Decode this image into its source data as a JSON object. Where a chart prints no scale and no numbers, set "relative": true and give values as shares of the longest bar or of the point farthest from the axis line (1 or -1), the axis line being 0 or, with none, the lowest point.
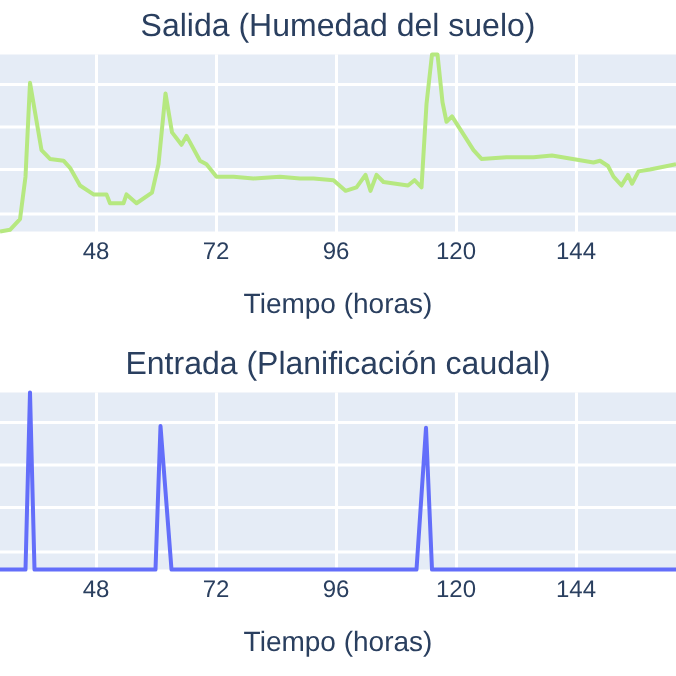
{
  "chart_data": [
    {
      "type": "line",
      "title": "Salida (Humedad del suelo)",
      "xlabel": "Tiempo (horas)",
      "relative": true,
      "grid": true,
      "tick_labels": "x",
      "xlim": [
        28.8,
        164
      ],
      "xticks": [
        48,
        72,
        96,
        120,
        144
      ],
      "series": [
        {
          "color": "#b6e880",
          "x": [
            28.8,
            30.8,
            32.8,
            33.9,
            34.8,
            37.1,
            38.8,
            41.5,
            42.8,
            44.8,
            47.5,
            50.1,
            50.8,
            53.5,
            54.1,
            56.1,
            59.2,
            60.5,
            61.9,
            63.2,
            65.1,
            66.1,
            68.8,
            70.1,
            72.1,
            75.5,
            79.5,
            84.8,
            88.8,
            91.5,
            95.5,
            97.9,
            100.1,
            101.9,
            102.9,
            104.1,
            105.5,
            110.4,
            111.7,
            113.1,
            114.1,
            115.2,
            116.3,
            117.3,
            118.1,
            119.2,
            123.5,
            125.1,
            130.1,
            135.5,
            139.2,
            147.5,
            148.8,
            150.4,
            151.5,
            153.1,
            154.4,
            155.2,
            156.5,
            158.8,
            164
          ],
          "values": [
            0,
            0.01,
            0.07,
            0.31,
            0.84,
            0.46,
            0.41,
            0.4,
            0.36,
            0.26,
            0.21,
            0.21,
            0.16,
            0.16,
            0.21,
            0.16,
            0.22,
            0.38,
            0.78,
            0.56,
            0.49,
            0.54,
            0.4,
            0.38,
            0.31,
            0.31,
            0.3,
            0.31,
            0.3,
            0.3,
            0.29,
            0.23,
            0.25,
            0.32,
            0.23,
            0.32,
            0.28,
            0.26,
            0.29,
            0.25,
            0.72,
            1,
            1,
            0.73,
            0.62,
            0.65,
            0.46,
            0.41,
            0.42,
            0.42,
            0.43,
            0.39,
            0.4,
            0.37,
            0.31,
            0.26,
            0.32,
            0.27,
            0.34,
            0.35,
            0.38
          ]
        }
      ]
    },
    {
      "type": "line",
      "title": "Entrada (Planificación caudal)",
      "xlabel": "Tiempo (horas)",
      "relative": true,
      "grid": true,
      "tick_labels": "x",
      "xlim": [
        28.8,
        164
      ],
      "xticks": [
        48,
        72,
        96,
        120,
        144
      ],
      "series": [
        {
          "color": "#636efa",
          "x": [
            28.8,
            33.9,
            34.8,
            35.7,
            59.9,
            60.9,
            63.1,
            112.1,
            114,
            115.2,
            164
          ],
          "values": [
            0,
            0,
            1,
            0,
            0,
            0.81,
            0,
            0,
            0.8,
            0,
            0
          ]
        }
      ]
    }
  ]
}
